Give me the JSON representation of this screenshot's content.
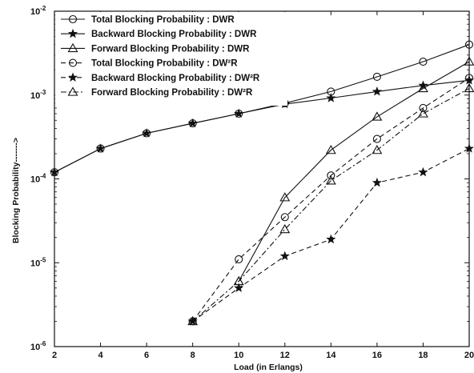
{
  "chart_data": {
    "type": "line",
    "xlabel": "Load (in Erlangs)",
    "ylabel": "Blocking Probability------->",
    "x_ticks": [
      2,
      4,
      6,
      8,
      10,
      12,
      14,
      16,
      18,
      20
    ],
    "y_ticks": [
      {
        "value": 1e-06,
        "base": "10",
        "exp": "-6"
      },
      {
        "value": 1e-05,
        "base": "10",
        "exp": "-5"
      },
      {
        "value": 0.0001,
        "base": "10",
        "exp": "-4"
      },
      {
        "value": 0.001,
        "base": "10",
        "exp": "-3"
      },
      {
        "value": 0.01,
        "base": "10",
        "exp": "-2"
      }
    ],
    "xlim": [
      2,
      20
    ],
    "ylim": [
      1e-06,
      0.01
    ],
    "yscale": "log",
    "grid": false,
    "legend_position": "top-left",
    "series": [
      {
        "name": "Total Blocking Probability : DWR",
        "marker": "circle",
        "dash": "solid",
        "x": [
          2,
          4,
          6,
          8,
          10,
          12,
          14,
          16,
          18,
          20
        ],
        "y": [
          0.00012,
          0.00023,
          0.00035,
          0.00046,
          0.0006,
          0.0008,
          0.0011,
          0.00165,
          0.0025,
          0.004
        ]
      },
      {
        "name": "Backward Blocking Probability : DWR",
        "marker": "star",
        "dash": "solid",
        "x": [
          2,
          4,
          6,
          8,
          10,
          12,
          14,
          16,
          18,
          20
        ],
        "y": [
          0.00012,
          0.00023,
          0.00035,
          0.00046,
          0.0006,
          0.00078,
          0.00092,
          0.0011,
          0.0013,
          0.0015
        ]
      },
      {
        "name": "Forward Blocking Probability : DWR",
        "marker": "triangle",
        "dash": "solid",
        "x": [
          10,
          12,
          14,
          16,
          18,
          20
        ],
        "y": [
          6e-06,
          6e-05,
          0.00022,
          0.00055,
          0.0012,
          0.0025
        ]
      },
      {
        "name": "Total Blocking Probability : DW²R",
        "marker": "circle",
        "dash": "dashed",
        "x": [
          8,
          10,
          12,
          14,
          16,
          18,
          20
        ],
        "y": [
          2e-06,
          1.1e-05,
          3.5e-05,
          0.00011,
          0.0003,
          0.0007,
          0.0016
        ]
      },
      {
        "name": "Backward Blocking Probability : DW²R",
        "marker": "star",
        "dash": "dashed",
        "x": [
          8,
          10,
          12,
          14,
          16,
          18,
          20
        ],
        "y": [
          2e-06,
          5e-06,
          1.2e-05,
          1.9e-05,
          9e-05,
          0.00012,
          0.00023
        ]
      },
      {
        "name": "Forward Blocking Probability : DW²R",
        "marker": "triangle",
        "dash": "dashdot",
        "x": [
          8,
          10,
          12,
          14,
          16,
          18,
          20
        ],
        "y": [
          2e-06,
          6e-06,
          2.5e-05,
          9.5e-05,
          0.00022,
          0.0006,
          0.0012
        ]
      }
    ]
  }
}
